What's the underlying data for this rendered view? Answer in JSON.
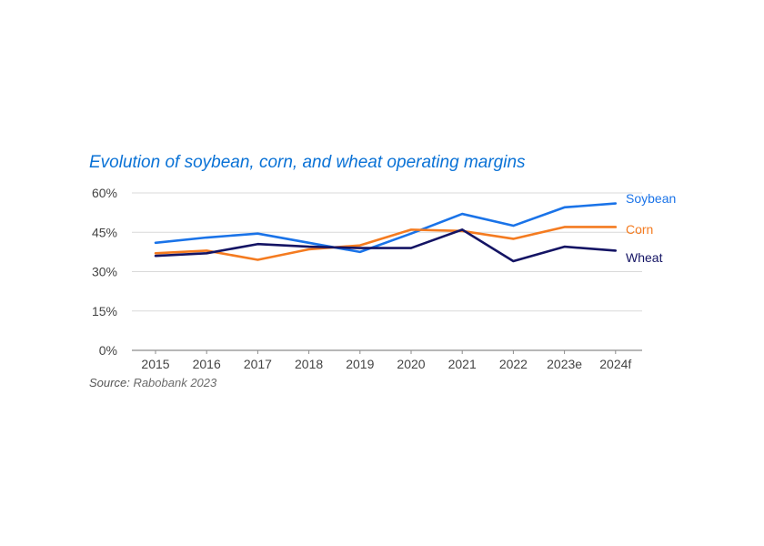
{
  "chart_data": {
    "type": "line",
    "title": "Evolution of soybean, corn, and wheat operating margins",
    "categories": [
      "2015",
      "2016",
      "2017",
      "2018",
      "2019",
      "2020",
      "2021",
      "2022",
      "2023e",
      "2024f"
    ],
    "yticks": [
      "0%",
      "15%",
      "30%",
      "45%",
      "60%"
    ],
    "ylim": [
      0,
      60
    ],
    "xlabel": "",
    "ylabel": "",
    "series": [
      {
        "name": "Soybean",
        "color": "#1a73e8",
        "values": [
          41,
          43,
          44.5,
          41,
          37.5,
          44.5,
          52,
          47.5,
          54.5,
          56
        ]
      },
      {
        "name": "Corn",
        "color": "#f47b20",
        "values": [
          37,
          38,
          34.5,
          38.5,
          40,
          46,
          45.5,
          42.5,
          47,
          47
        ]
      },
      {
        "name": "Wheat",
        "color": "#141464",
        "values": [
          36,
          37,
          40.5,
          39.5,
          39,
          39,
          46,
          34,
          39.5,
          38
        ]
      }
    ],
    "source_label": "Source:",
    "source_text": "Rabobank 2023"
  }
}
